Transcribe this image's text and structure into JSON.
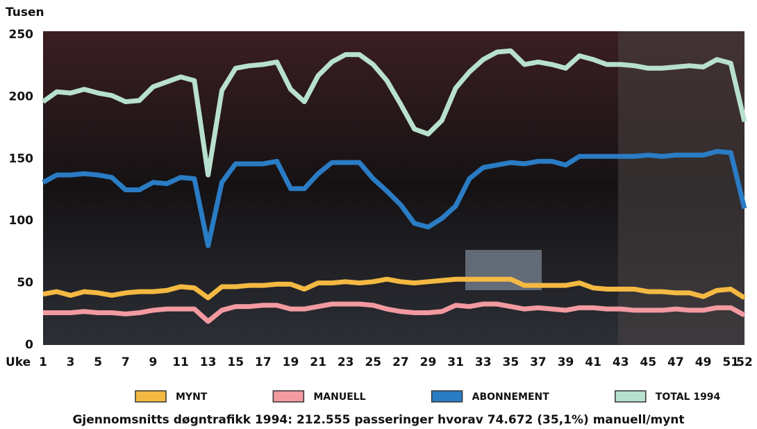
{
  "chart_data": {
    "type": "line",
    "y_label": "Tusen",
    "x_label": "Uke",
    "note": "Gjennomsnitts døgntrafikk 1994: 212.555 passeringer hvorav 74.672 (35,1%) manuell/mynt",
    "x": [
      1,
      2,
      3,
      4,
      5,
      6,
      7,
      8,
      9,
      10,
      11,
      12,
      13,
      14,
      15,
      16,
      17,
      18,
      19,
      20,
      21,
      22,
      23,
      24,
      25,
      26,
      27,
      28,
      29,
      30,
      31,
      32,
      33,
      34,
      35,
      36,
      37,
      38,
      39,
      40,
      41,
      42,
      43,
      44,
      45,
      46,
      47,
      48,
      49,
      50,
      51,
      52
    ],
    "xlim": [
      1,
      52
    ],
    "xticks": [
      1,
      3,
      5,
      7,
      9,
      11,
      13,
      15,
      17,
      19,
      21,
      23,
      25,
      27,
      29,
      31,
      33,
      35,
      37,
      39,
      41,
      43,
      45,
      47,
      49,
      51,
      52
    ],
    "ylim": [
      0,
      250
    ],
    "yticks": [
      0,
      50,
      100,
      150,
      200,
      250
    ],
    "series": [
      {
        "name": "MYNT",
        "color": "#f4b942",
        "values": [
          41,
          43,
          40,
          43,
          42,
          40,
          42,
          43,
          43,
          44,
          47,
          46,
          38,
          47,
          47,
          48,
          48,
          49,
          49,
          45,
          50,
          50,
          51,
          50,
          51,
          53,
          51,
          50,
          51,
          52,
          53,
          53,
          53,
          53,
          53,
          48,
          48,
          48,
          48,
          50,
          46,
          45,
          45,
          45,
          43,
          43,
          42,
          42,
          39,
          44,
          45,
          38
        ]
      },
      {
        "name": "MANUELL",
        "color": "#f29aa0",
        "values": [
          26,
          26,
          26,
          27,
          26,
          26,
          25,
          26,
          28,
          29,
          29,
          29,
          19,
          28,
          31,
          31,
          32,
          32,
          29,
          29,
          31,
          33,
          33,
          33,
          32,
          29,
          27,
          26,
          26,
          27,
          32,
          31,
          33,
          33,
          31,
          29,
          30,
          29,
          28,
          30,
          30,
          29,
          29,
          28,
          28,
          28,
          29,
          28,
          28,
          30,
          30,
          24
        ]
      },
      {
        "name": "ABONNEMENT",
        "color": "#2a7cc4",
        "values": [
          131,
          137,
          137,
          138,
          137,
          135,
          125,
          125,
          131,
          130,
          135,
          134,
          80,
          131,
          146,
          146,
          146,
          148,
          126,
          126,
          138,
          147,
          147,
          147,
          134,
          124,
          113,
          98,
          95,
          102,
          112,
          134,
          143,
          145,
          147,
          146,
          148,
          148,
          145,
          152,
          152,
          152,
          152,
          152,
          153,
          152,
          153,
          153,
          153,
          156,
          155,
          110
        ]
      },
      {
        "name": "TOTAL 1994",
        "color": "#b8e0cf",
        "values": [
          196,
          204,
          203,
          206,
          203,
          201,
          196,
          197,
          208,
          212,
          216,
          213,
          137,
          205,
          223,
          225,
          226,
          228,
          206,
          196,
          217,
          228,
          234,
          234,
          226,
          213,
          194,
          174,
          170,
          181,
          207,
          220,
          230,
          236,
          237,
          226,
          228,
          226,
          223,
          233,
          230,
          226,
          226,
          225,
          223,
          223,
          224,
          225,
          224,
          230,
          227,
          180
        ]
      }
    ]
  }
}
